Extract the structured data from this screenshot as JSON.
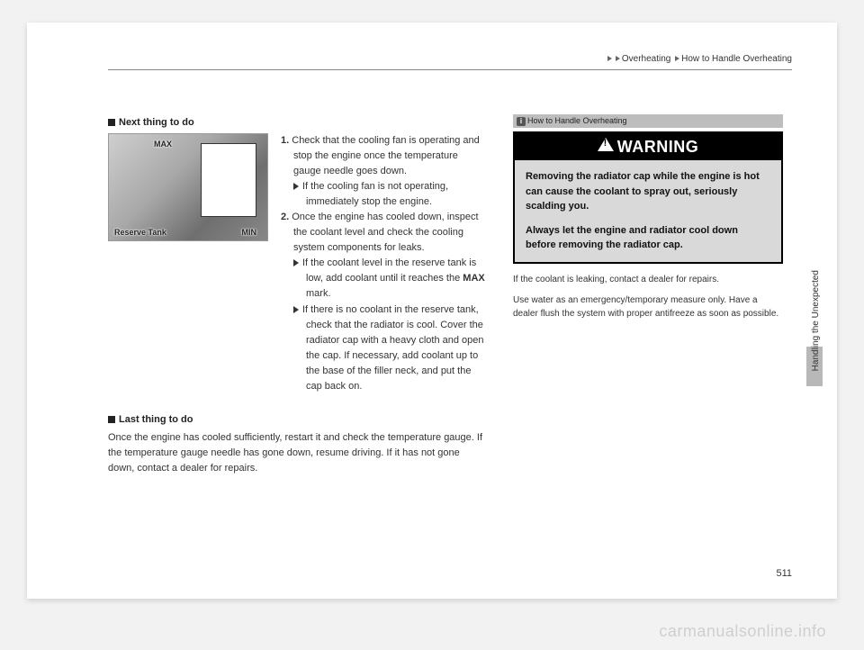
{
  "breadcrumb": {
    "a": "Overheating",
    "b": "How to Handle Overheating"
  },
  "sections": {
    "next": {
      "title": "Next thing to do",
      "figure": {
        "max": "MAX",
        "min": "MIN",
        "tank": "Reserve Tank"
      },
      "s1_num": "1.",
      "s1": "Check that the cooling fan is operating and stop the engine once the temperature gauge needle goes down.",
      "s1a": "If the cooling fan is not operating, immediately stop the engine.",
      "s2_num": "2.",
      "s2": "Once the engine has cooled down, inspect the coolant level and check the cooling system components for leaks.",
      "s2a_pre": "If the coolant level in the reserve tank is low, add coolant until it reaches the ",
      "s2a_bold": "MAX",
      "s2a_post": " mark.",
      "s2b": "If there is no coolant in the reserve tank, check that the radiator is cool. Cover the radiator cap with a heavy cloth and open the cap. If necessary, add coolant up to the base of the filler neck, and put the cap back on."
    },
    "last": {
      "title": "Last thing to do",
      "body": "Once the engine has cooled sufficiently, restart it and check the temperature gauge. If the temperature gauge needle has gone down, resume driving. If it has not gone down, contact a dealer for repairs."
    }
  },
  "sidebar": {
    "head": "How to Handle Overheating",
    "warning": {
      "title": "WARNING",
      "p1": "Removing the radiator cap while the engine is hot can cause the coolant to spray out, seriously scalding you.",
      "p2": "Always let the engine and radiator cool down before removing the radiator cap."
    },
    "note1": "If the coolant is leaking, contact a dealer for repairs.",
    "note2": "Use water as an emergency/temporary measure only. Have a dealer flush the system with proper antifreeze as soon as possible."
  },
  "tab": "Handling the Unexpected",
  "page_num": "511",
  "watermark": "carmanualsonline.info"
}
